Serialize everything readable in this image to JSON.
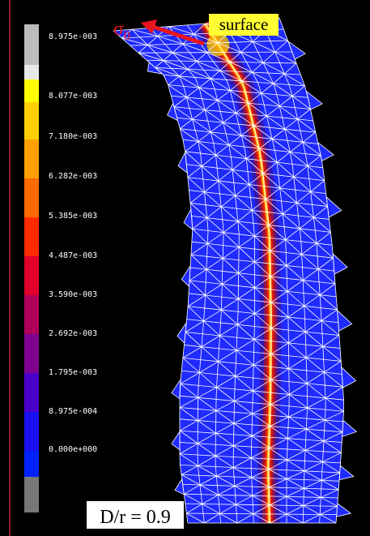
{
  "colorbar": {
    "labels": [
      "8.975e-003",
      "8.077e-003",
      "7.180e-003",
      "6.282e-003",
      "5.385e-003",
      "4.487e-003",
      "3.590e-003",
      "2.692e-003",
      "1.795e-003",
      "8.975e-004",
      "0.000e+000"
    ]
  },
  "annotations": {
    "stress": "σ",
    "stress_subscript": "0",
    "surface": "surface",
    "ratio": "D/r = 0.9"
  }
}
